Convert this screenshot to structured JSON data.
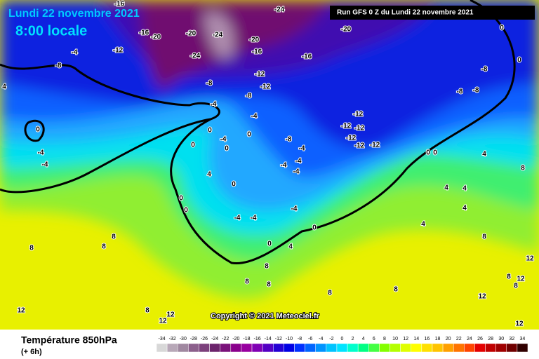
{
  "header": {
    "date": "Lundi 22 novembre 2021",
    "time": "8:00 locale",
    "run": "Run GFS 0 Z du Lundi 22 novembre 2021"
  },
  "copyright": "Copyright © 2021 Meteociel.fr",
  "footer": {
    "title": "Température 850hPa",
    "lead": "(+ 6h)"
  },
  "colorbar": {
    "ticks": [
      -34,
      -32,
      -30,
      -28,
      -26,
      -24,
      -22,
      -20,
      -18,
      -16,
      -14,
      -12,
      -10,
      -8,
      -6,
      -4,
      -2,
      0,
      2,
      4,
      6,
      8,
      10,
      12,
      14,
      16,
      18,
      20,
      22,
      24,
      26,
      28,
      30,
      32,
      34
    ],
    "colors": [
      "#d8d8d8",
      "#b8a8b8",
      "#a088a0",
      "#8c608c",
      "#7c407c",
      "#6c246c",
      "#7a127a",
      "#8a008c",
      "#9800a0",
      "#8000b4",
      "#5400c4",
      "#2400d4",
      "#0000e4",
      "#0030ff",
      "#0064ff",
      "#0094ff",
      "#00c4ff",
      "#00e4ff",
      "#00ffcc",
      "#00ff84",
      "#44ff44",
      "#84ff00",
      "#b4ff00",
      "#e0ff00",
      "#ffff00",
      "#ffe000",
      "#ffc400",
      "#ffa000",
      "#ff7400",
      "#ff4400",
      "#e40000",
      "#c00000",
      "#a00000",
      "#700000",
      "#300000"
    ]
  },
  "map_labels": [
    -16,
    -24,
    -16,
    -20,
    -20,
    -24,
    -20,
    -16,
    -16,
    -20,
    0,
    0,
    -8,
    -8,
    -8,
    -12,
    -4,
    -8,
    4,
    -24,
    -12,
    -8,
    -12,
    -8,
    -4,
    -4,
    0,
    0,
    -4,
    0,
    0,
    -8,
    -12,
    -12,
    -12,
    -12,
    -12,
    -12,
    -4,
    -4,
    -4,
    -4,
    0,
    -4,
    -4,
    4,
    0,
    0,
    0,
    -4,
    -4,
    -4,
    0,
    0,
    4,
    0,
    0,
    4,
    4,
    4,
    4,
    4,
    8,
    8,
    8,
    8,
    8,
    8,
    8,
    8,
    8,
    8,
    8,
    12,
    12,
    12,
    12,
    12,
    8,
    8,
    12,
    12
  ]
}
